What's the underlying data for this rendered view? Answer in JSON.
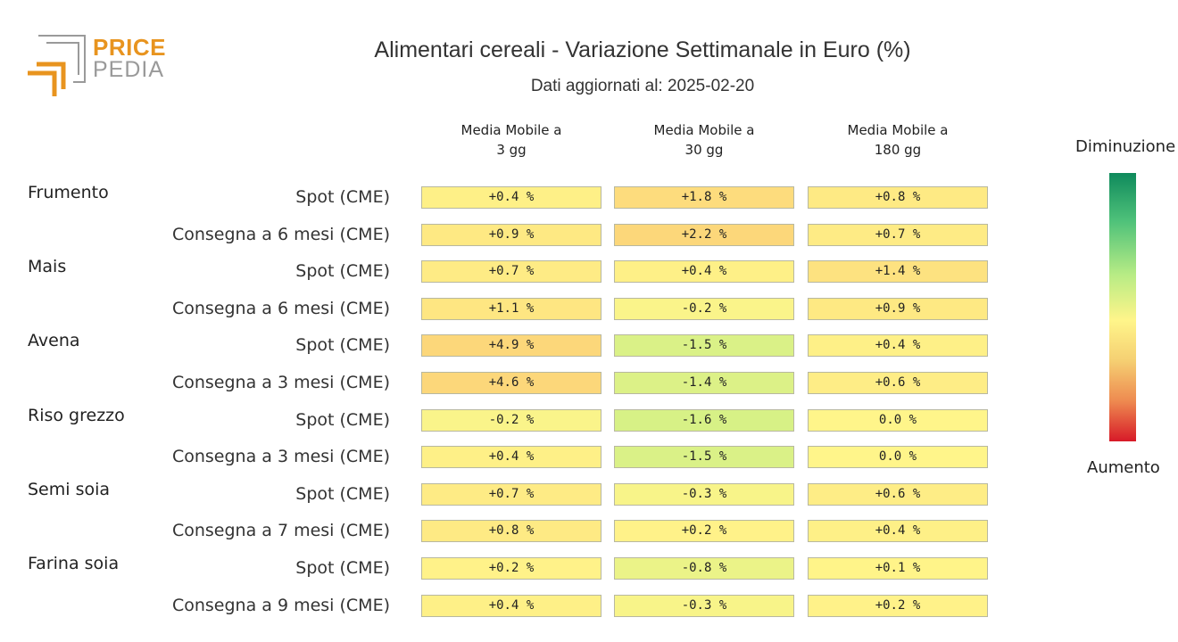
{
  "logo": {
    "line1": "PRICE",
    "line2": "PEDIA",
    "colors": {
      "orange": "#e8941f",
      "grey": "#9a9a9a"
    }
  },
  "title": "Alimentari cereali - Variazione Settimanale in Euro (%)",
  "subtitle": "Dati aggiornati al: 2025-02-20",
  "legend": {
    "top_label": "Diminuzione",
    "bottom_label": "Aumento"
  },
  "chart_data": {
    "type": "table",
    "columns": [
      "Media Mobile a\n3 gg",
      "Media Mobile a\n30 gg",
      "Media Mobile a\n180 gg"
    ],
    "column_lines": [
      [
        "Media Mobile a",
        "3 gg"
      ],
      [
        "Media Mobile a",
        "30 gg"
      ],
      [
        "Media Mobile a",
        "180 gg"
      ]
    ],
    "unit": "%",
    "groups": [
      {
        "name": "Frumento",
        "rows": [
          {
            "label": "Spot (CME)",
            "values": [
              0.4,
              1.8,
              0.8
            ],
            "texts": [
              "+0.4 %",
              "+1.8 %",
              "+0.8 %"
            ]
          },
          {
            "label": "Consegna a 6 mesi (CME)",
            "values": [
              0.9,
              2.2,
              0.7
            ],
            "texts": [
              "+0.9 %",
              "+2.2 %",
              "+0.7 %"
            ]
          }
        ]
      },
      {
        "name": "Mais",
        "rows": [
          {
            "label": "Spot (CME)",
            "values": [
              0.7,
              0.4,
              1.4
            ],
            "texts": [
              "+0.7 %",
              "+0.4 %",
              "+1.4 %"
            ]
          },
          {
            "label": "Consegna a 6 mesi (CME)",
            "values": [
              1.1,
              -0.2,
              0.9
            ],
            "texts": [
              "+1.1 %",
              "-0.2 %",
              "+0.9 %"
            ]
          }
        ]
      },
      {
        "name": "Avena",
        "rows": [
          {
            "label": "Spot (CME)",
            "values": [
              4.9,
              -1.5,
              0.4
            ],
            "texts": [
              "+4.9 %",
              "-1.5 %",
              "+0.4 %"
            ]
          },
          {
            "label": "Consegna a 3 mesi (CME)",
            "values": [
              4.6,
              -1.4,
              0.6
            ],
            "texts": [
              "+4.6 %",
              "-1.4 %",
              "+0.6 %"
            ]
          }
        ]
      },
      {
        "name": "Riso grezzo",
        "rows": [
          {
            "label": "Spot (CME)",
            "values": [
              -0.2,
              -1.6,
              0.0
            ],
            "texts": [
              "-0.2 %",
              "-1.6 %",
              "0.0 %"
            ]
          },
          {
            "label": "Consegna a 3 mesi (CME)",
            "values": [
              0.4,
              -1.5,
              0.0
            ],
            "texts": [
              "+0.4 %",
              "-1.5 %",
              "0.0 %"
            ]
          }
        ]
      },
      {
        "name": "Semi soia",
        "rows": [
          {
            "label": "Spot (CME)",
            "values": [
              0.7,
              -0.3,
              0.6
            ],
            "texts": [
              "+0.7 %",
              "-0.3 %",
              "+0.6 %"
            ]
          },
          {
            "label": "Consegna a 7 mesi (CME)",
            "values": [
              0.8,
              0.2,
              0.4
            ],
            "texts": [
              "+0.8 %",
              "+0.2 %",
              "+0.4 %"
            ]
          }
        ]
      },
      {
        "name": "Farina soia",
        "rows": [
          {
            "label": "Spot (CME)",
            "values": [
              0.2,
              -0.8,
              0.1
            ],
            "texts": [
              "+0.2 %",
              "-0.8 %",
              "+0.1 %"
            ]
          },
          {
            "label": "Consegna a 9 mesi (CME)",
            "values": [
              0.4,
              -0.3,
              0.2
            ],
            "texts": [
              "+0.4 %",
              "-0.3 %",
              "+0.2 %"
            ]
          }
        ]
      }
    ],
    "color_scale": {
      "stops": [
        "#0f8a5c",
        "#b8ec85",
        "#fff58a",
        "#f5cf72",
        "#d71a28"
      ]
    }
  }
}
